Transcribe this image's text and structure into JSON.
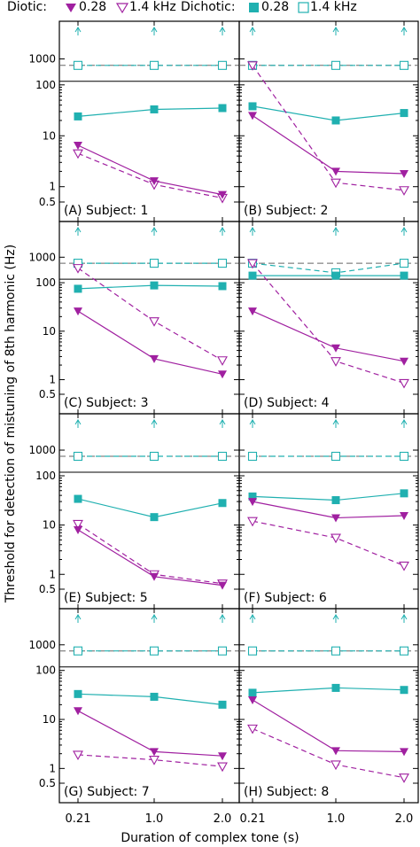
{
  "legend": {
    "diotic_label": "Diotic:",
    "dichotic_label": "Dichotic:",
    "f1": "0.28",
    "f2": "1.4 kHz",
    "f1b": "0.28",
    "f2b": "1.4 kHz"
  },
  "colors": {
    "diotic": "#a020a0",
    "dichotic": "#20b0b0",
    "axis": "#000000"
  },
  "chart_data": {
    "type": "line",
    "xlabel": "Duration of complex tone (s)",
    "ylabel": "Threshold for detection of mistuning of 8th harmonic (Hz)",
    "x_tick_labels": [
      "0.21",
      "1.0",
      "2.0"
    ],
    "x": [
      0.21,
      1.0,
      2.0
    ],
    "y_scale": "log",
    "y_ticks_lower": [
      0.5,
      1,
      10,
      100
    ],
    "y_ticks_upper": [
      1000
    ],
    "reference_line": 700,
    "panels": [
      {
        "label": "(A) Subject:  1",
        "diotic_028": [
          6.5,
          1.3,
          0.7
        ],
        "diotic_14": [
          4.5,
          1.1,
          0.6
        ],
        "dichotic_028": [
          24,
          33,
          35
        ],
        "dichotic_14": [
          700,
          700,
          700
        ]
      },
      {
        "label": "(B) Subject:  2",
        "diotic_028": [
          25,
          2,
          1.8
        ],
        "diotic_14": [
          700,
          1.2,
          0.85
        ],
        "dichotic_028": [
          38,
          20,
          28
        ],
        "dichotic_14": [
          700,
          700,
          700
        ]
      },
      {
        "label": "(C) Subject:  3",
        "diotic_028": [
          26,
          2.7,
          1.3
        ],
        "diotic_14": [
          200,
          16,
          2.5
        ],
        "dichotic_028": [
          75,
          88,
          85
        ],
        "dichotic_14": [
          700,
          700,
          700
        ]
      },
      {
        "label": "(D) Subject:  4",
        "diotic_028": [
          26,
          4.5,
          2.4
        ],
        "diotic_14": [
          700,
          2.4,
          0.85
        ],
        "dichotic_028": [
          140,
          140,
          140
        ],
        "dichotic_14": [
          700,
          160,
          700
        ]
      },
      {
        "label": "(E) Subject:  5",
        "diotic_028": [
          8,
          0.9,
          0.6
        ],
        "diotic_14": [
          10.5,
          1,
          0.65
        ],
        "dichotic_028": [
          34,
          14.5,
          28
        ],
        "dichotic_14": [
          700,
          700,
          700
        ]
      },
      {
        "label": "(F) Subject:  6",
        "diotic_028": [
          30,
          14,
          15.5
        ],
        "diotic_14": [
          12,
          5.5,
          1.5
        ],
        "dichotic_028": [
          38,
          32,
          44
        ],
        "dichotic_14": [
          700,
          700,
          700
        ]
      },
      {
        "label": "(G) Subject:  7",
        "diotic_028": [
          15,
          2.2,
          1.8
        ],
        "diotic_14": [
          1.9,
          1.5,
          1.1
        ],
        "dichotic_028": [
          33,
          29,
          20
        ],
        "dichotic_14": [
          700,
          700,
          700
        ]
      },
      {
        "label": "(H) Subject:  8",
        "diotic_028": [
          25,
          2.3,
          2.2
        ],
        "diotic_14": [
          6.5,
          1.2,
          0.65
        ],
        "dichotic_028": [
          35,
          44,
          40
        ],
        "dichotic_14": [
          700,
          700,
          700
        ]
      }
    ]
  }
}
